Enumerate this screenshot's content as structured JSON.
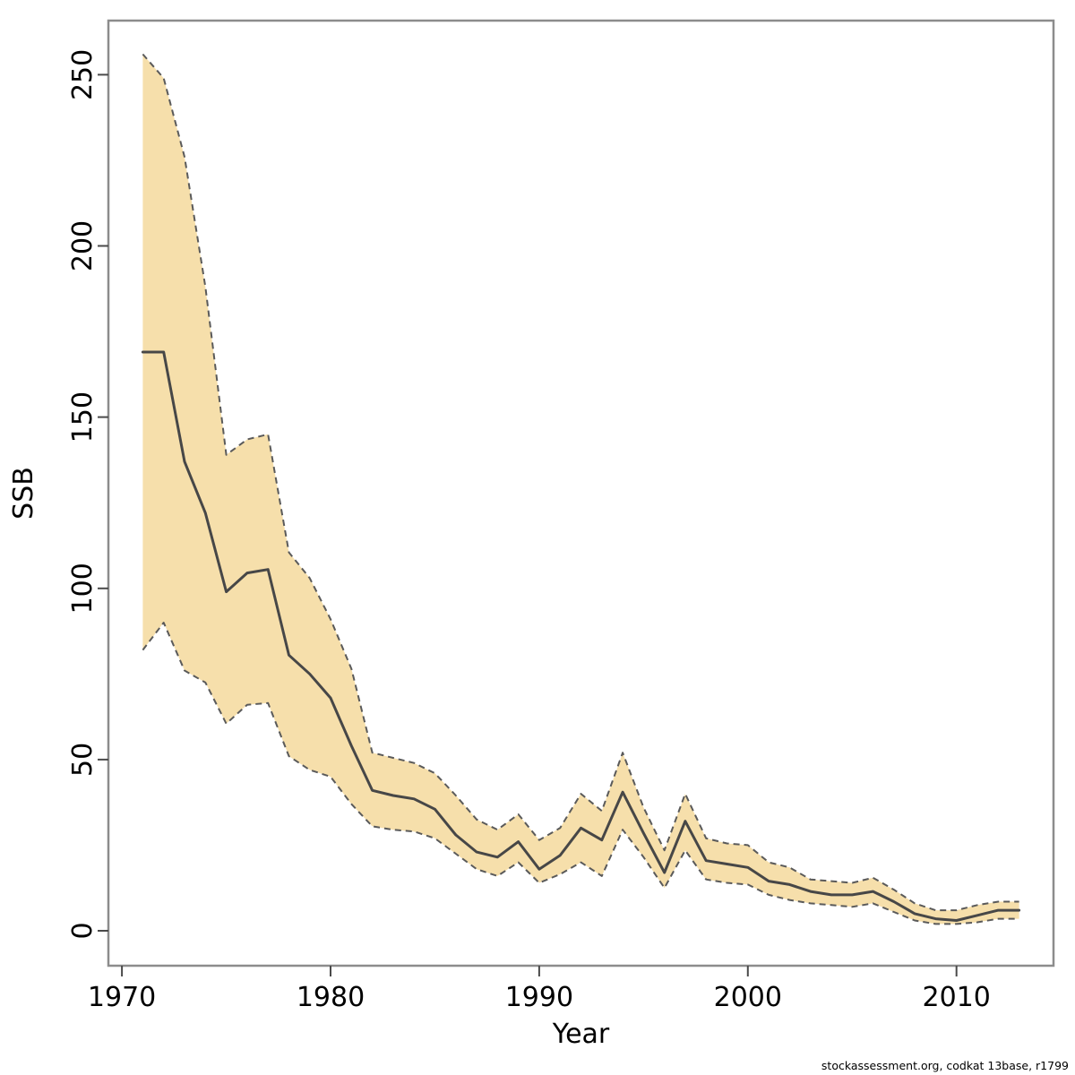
{
  "chart_data": {
    "type": "line",
    "description": "SSB time series with 95% confidence band",
    "x": [
      1971,
      1972,
      1973,
      1974,
      1975,
      1976,
      1977,
      1978,
      1979,
      1980,
      1981,
      1982,
      1983,
      1984,
      1985,
      1986,
      1987,
      1988,
      1989,
      1990,
      1991,
      1992,
      1993,
      1994,
      1995,
      1996,
      1997,
      1998,
      1999,
      2000,
      2001,
      2002,
      2003,
      2004,
      2005,
      2006,
      2007,
      2008,
      2009,
      2010,
      2011,
      2012,
      2013
    ],
    "series": [
      {
        "name": "ssb_estimate",
        "values": [
          169,
          169,
          137,
          122,
          99,
          104.5,
          105.5,
          80.5,
          75,
          68,
          54,
          41,
          39.5,
          38.5,
          35.5,
          28,
          23,
          21.5,
          26,
          18,
          22,
          30,
          26.5,
          40.5,
          28.5,
          17,
          32,
          20.5,
          19.5,
          18.5,
          14.5,
          13.5,
          11.5,
          10.5,
          10.5,
          11.5,
          8.5,
          5,
          3.5,
          3,
          4.5,
          6,
          6
        ]
      },
      {
        "name": "ci_upper",
        "values": [
          256,
          249,
          226,
          188,
          139,
          143.5,
          145,
          110.5,
          103,
          91,
          76.5,
          52,
          50.5,
          49,
          46,
          39.5,
          32.5,
          29.5,
          34,
          26.5,
          30,
          40,
          35,
          52,
          36,
          23.5,
          40,
          27,
          25.5,
          25,
          20,
          18.5,
          15,
          14.5,
          14,
          15.5,
          12,
          8,
          6,
          6,
          7.5,
          8.5,
          8.5
        ]
      },
      {
        "name": "ci_lower",
        "values": [
          82,
          90,
          76,
          72.5,
          60.5,
          66,
          66.5,
          51,
          47,
          45,
          37,
          30.5,
          29.5,
          29,
          27,
          22.5,
          18,
          16,
          20,
          14,
          16.5,
          20,
          16,
          29.5,
          21.5,
          12.5,
          23.5,
          15,
          14,
          13.5,
          10.5,
          9,
          8,
          7.5,
          7,
          8,
          5.5,
          3,
          2,
          2,
          2.5,
          3.5,
          3.5
        ]
      }
    ],
    "xlabel": "Year",
    "ylabel": "SSB",
    "xticks": [
      1970,
      1980,
      1990,
      2000,
      2010
    ],
    "yticks": [
      0,
      50,
      100,
      150,
      200,
      250
    ],
    "xlim": [
      1969.35,
      2014.65
    ],
    "ylim": [
      -10.2,
      265.8
    ],
    "grid": false,
    "legend_position": "none",
    "colors": {
      "band_fill": "#f6dfab",
      "band_border": "#5a5a5a",
      "line": "#474747",
      "box": "#8c8c8c",
      "tick": "#4a4a4a",
      "label": "#000000"
    }
  },
  "footer": {
    "credit": "stockassessment.org, codkat 13base, r1799"
  }
}
